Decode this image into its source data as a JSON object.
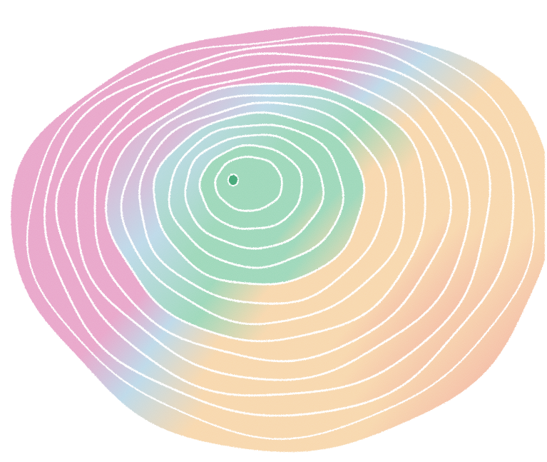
{
  "artwork": {
    "palette": {
      "background": "#ffffff",
      "pink": "#e69cc4",
      "blue": "#b6d5e6",
      "green": "#92d3b2",
      "green_dark": "#2f9e68",
      "peach": "#f7d3a4",
      "coral": "#ef9b96",
      "gap": "#ffffff"
    },
    "ring_count": 14
  }
}
